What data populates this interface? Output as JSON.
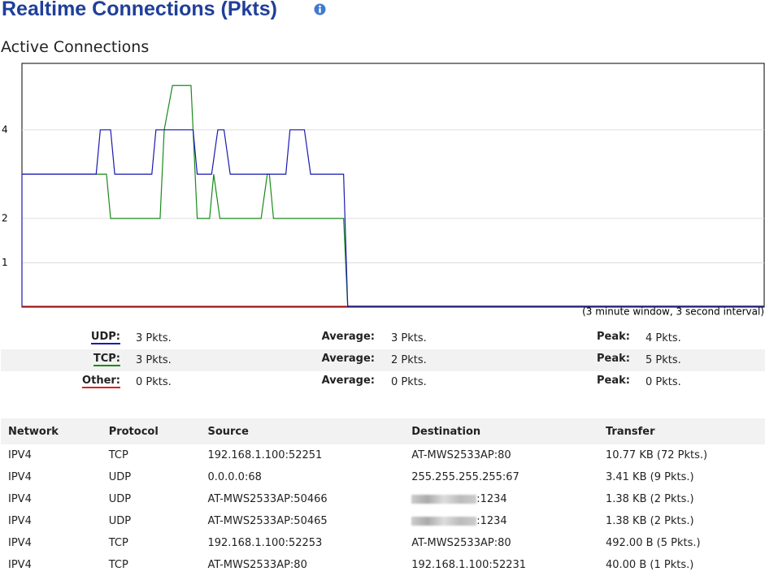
{
  "header": {
    "title": "Realtime Connections (Pkts)",
    "subtitle": "Active Connections"
  },
  "chart_data": {
    "type": "line",
    "annotation": "(3 minute window, 3 second interval)",
    "xlim": [
      0,
      180
    ],
    "ylim": [
      0,
      5.5
    ],
    "yticks": [
      1,
      2,
      4
    ],
    "grid": true,
    "series": [
      {
        "name": "Other:",
        "color": "#e02020",
        "x": [
          0,
          180
        ],
        "values": [
          0,
          0
        ]
      },
      {
        "name": "TCP:",
        "color": "#1a8a1a",
        "x": [
          0,
          20.5,
          21.5,
          33.5,
          34.5,
          36.5,
          41,
          42.5,
          45.5,
          46.5,
          48,
          58,
          59.5,
          60,
          61,
          78,
          79,
          180
        ],
        "values": [
          3,
          3,
          2,
          2,
          4,
          5,
          5,
          2,
          2,
          3,
          2,
          2,
          3,
          3,
          2,
          2,
          0,
          0
        ]
      },
      {
        "name": "UDP:",
        "color": "#1a1ab0",
        "x": [
          0,
          0,
          18,
          19,
          21.5,
          22.5,
          31.5,
          32.5,
          41.5,
          42.5,
          46,
          47.5,
          49,
          50.5,
          64,
          65,
          68.5,
          70,
          78,
          79,
          180
        ],
        "values": [
          0,
          3,
          3,
          4,
          4,
          3,
          3,
          4,
          4,
          3,
          3,
          4,
          4,
          3,
          3,
          4,
          4,
          3,
          3,
          0,
          0
        ]
      }
    ]
  },
  "stats": [
    {
      "series": 2,
      "current": "3 Pkts.",
      "average_label": "Average:",
      "average": "3 Pkts.",
      "peak_label": "Peak:",
      "peak": "4 Pkts."
    },
    {
      "series": 1,
      "current": "3 Pkts.",
      "average_label": "Average:",
      "average": "2 Pkts.",
      "peak_label": "Peak:",
      "peak": "5 Pkts."
    },
    {
      "series": 0,
      "current": "0 Pkts.",
      "average_label": "Average:",
      "average": "0 Pkts.",
      "peak_label": "Peak:",
      "peak": "0 Pkts."
    }
  ],
  "table": {
    "columns": [
      "Network",
      "Protocol",
      "Source",
      "Destination",
      "Transfer"
    ],
    "rows": [
      [
        "IPV4",
        "TCP",
        "192.168.1.100:52251",
        "AT-MWS2533AP:80",
        "10.77 KB (72 Pkts.)"
      ],
      [
        "IPV4",
        "UDP",
        "0.0.0.0:68",
        "255.255.255.255:67",
        "3.41 KB (9 Pkts.)"
      ],
      [
        "IPV4",
        "UDP",
        "AT-MWS2533AP:50466",
        ":1234",
        "1.38 KB (2 Pkts.)"
      ],
      [
        "IPV4",
        "UDP",
        "AT-MWS2533AP:50465",
        ":1234",
        "1.38 KB (2 Pkts.)"
      ],
      [
        "IPV4",
        "TCP",
        "192.168.1.100:52253",
        "AT-MWS2533AP:80",
        "492.00 B (5 Pkts.)"
      ],
      [
        "IPV4",
        "TCP",
        "AT-MWS2533AP:80",
        "192.168.1.100:52231",
        "40.00 B (1 Pkts.)"
      ]
    ]
  }
}
